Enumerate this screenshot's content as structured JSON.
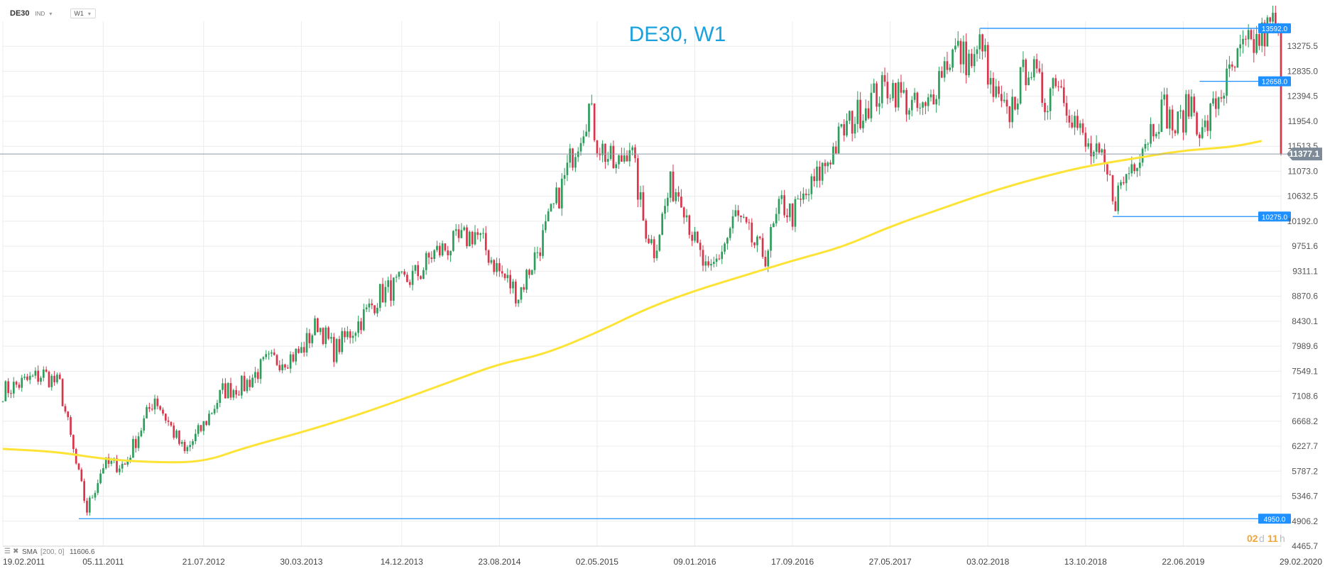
{
  "toolbar": {
    "symbol": "DE30",
    "symbol_type": "IND",
    "timeframe": "W1",
    "chevron_icon": "chevron-down-icon"
  },
  "chart_data": {
    "type": "candlestick",
    "title": "DE30, W1",
    "y_ticks": [
      "13275.5",
      "12835.0",
      "12394.5",
      "11954.0",
      "11513.5",
      "11073.0",
      "10632.5",
      "10192.0",
      "9751.6",
      "9311.1",
      "8870.6",
      "8430.1",
      "7989.6",
      "7549.1",
      "7108.6",
      "6668.2",
      "6227.7",
      "5787.2",
      "5346.7",
      "4906.2",
      "4465.7"
    ],
    "ylim": [
      4465.7,
      13716
    ],
    "x_ticks": [
      "19.02.2011",
      "05.11.2011",
      "21.07.2012",
      "30.03.2013",
      "14.12.2013",
      "23.08.2014",
      "02.05.2015",
      "09.01.2016",
      "17.09.2016",
      "27.05.2017",
      "03.02.2018",
      "13.10.2018",
      "22.06.2019",
      "29.02.2020"
    ],
    "current_price": "11377.1",
    "levels": [
      {
        "label": "13592.0",
        "value": 13592.0,
        "start": "13.01.2018"
      },
      {
        "label": "12658.0",
        "value": 12658.0,
        "start": "03.08.2019"
      },
      {
        "label": "10275.0",
        "value": 10275.0,
        "start": "22.12.2018"
      },
      {
        "label": "4950.0",
        "value": 4950.0,
        "start": "03.09.2011"
      }
    ],
    "indicator": {
      "label": "SMA",
      "params": "[200, 0]",
      "value": "11606.6",
      "color": "#fce335"
    },
    "countdown": {
      "days": "02",
      "d": "d",
      "hours": "11",
      "h": "h"
    },
    "sma_path": [
      [
        "19.02.2011",
        6180
      ],
      [
        "09.07.2011",
        6130
      ],
      [
        "05.11.2011",
        6000
      ],
      [
        "17.03.2012",
        5940
      ],
      [
        "21.07.2012",
        5950
      ],
      [
        "03.11.2012",
        6200
      ],
      [
        "30.03.2013",
        6470
      ],
      [
        "10.08.2013",
        6750
      ],
      [
        "14.12.2013",
        7050
      ],
      [
        "03.05.2014",
        7400
      ],
      [
        "23.08.2014",
        7680
      ],
      [
        "13.12.2014",
        7840
      ],
      [
        "02.05.2015",
        8230
      ],
      [
        "05.09.2015",
        8650
      ],
      [
        "09.01.2016",
        8970
      ],
      [
        "14.05.2016",
        9230
      ],
      [
        "17.09.2016",
        9500
      ],
      [
        "21.01.2017",
        9730
      ],
      [
        "27.05.2017",
        10100
      ],
      [
        "30.09.2017",
        10400
      ],
      [
        "03.02.2018",
        10700
      ],
      [
        "09.06.2018",
        10950
      ],
      [
        "13.10.2018",
        11160
      ],
      [
        "16.02.2019",
        11300
      ],
      [
        "22.06.2019",
        11440
      ],
      [
        "26.10.2019",
        11500
      ],
      [
        "10.01.2020",
        11606.6
      ]
    ],
    "price_anchors": [
      [
        "19.02.2011",
        7200
      ],
      [
        "04.06.2011",
        7500
      ],
      [
        "16.07.2011",
        7300
      ],
      [
        "27.08.2011",
        5900
      ],
      [
        "24.09.2011",
        5100
      ],
      [
        "05.11.2011",
        5900
      ],
      [
        "31.12.2011",
        5900
      ],
      [
        "17.03.2012",
        7100
      ],
      [
        "02.06.2012",
        6100
      ],
      [
        "21.07.2012",
        6600
      ],
      [
        "08.09.2012",
        7200
      ],
      [
        "03.11.2012",
        7300
      ],
      [
        "29.12.2012",
        7700
      ],
      [
        "02.03.2013",
        7800
      ],
      [
        "30.03.2013",
        7900
      ],
      [
        "11.05.2013",
        8400
      ],
      [
        "22.06.2013",
        7900
      ],
      [
        "24.08.2013",
        8400
      ],
      [
        "19.10.2013",
        8900
      ],
      [
        "14.12.2013",
        9100
      ],
      [
        "01.02.2014",
        9300
      ],
      [
        "01.03.2014",
        9600
      ],
      [
        "31.05.2014",
        9900
      ],
      [
        "21.06.2014",
        10000
      ],
      [
        "23.08.2014",
        9300
      ],
      [
        "11.10.2014",
        8900
      ],
      [
        "13.12.2014",
        9900
      ],
      [
        "31.01.2015",
        10800
      ],
      [
        "28.02.2015",
        11400
      ],
      [
        "11.04.2015",
        12200
      ],
      [
        "02.05.2015",
        11600
      ],
      [
        "20.06.2015",
        11100
      ],
      [
        "25.07.2015",
        11600
      ],
      [
        "29.08.2015",
        10200
      ],
      [
        "26.09.2015",
        9700
      ],
      [
        "07.11.2015",
        10800
      ],
      [
        "05.12.2015",
        10700
      ],
      [
        "09.01.2016",
        9800
      ],
      [
        "13.02.2016",
        9200
      ],
      [
        "02.04.2016",
        9900
      ],
      [
        "23.04.2016",
        10300
      ],
      [
        "18.06.2016",
        9700
      ],
      [
        "09.07.2016",
        9600
      ],
      [
        "20.08.2016",
        10500
      ],
      [
        "17.09.2016",
        10300
      ],
      [
        "29.10.2016",
        10700
      ],
      [
        "10.12.2016",
        11200
      ],
      [
        "28.01.2017",
        11800
      ],
      [
        "01.04.2017",
        12300
      ],
      [
        "27.05.2017",
        12600
      ],
      [
        "22.07.2017",
        12200
      ],
      [
        "26.08.2017",
        12100
      ],
      [
        "07.10.2017",
        12900
      ],
      [
        "11.11.2017",
        13200
      ],
      [
        "30.12.2017",
        12950
      ],
      [
        "20.01.2018",
        13450
      ],
      [
        "03.02.2018",
        12600
      ],
      [
        "24.03.2018",
        12000
      ],
      [
        "19.05.2018",
        13000
      ],
      [
        "30.06.2018",
        12300
      ],
      [
        "28.07.2018",
        12800
      ],
      [
        "13.10.2018",
        11500
      ],
      [
        "24.11.2018",
        11200
      ],
      [
        "29.12.2018",
        10600
      ],
      [
        "09.02.2019",
        11200
      ],
      [
        "13.04.2019",
        12000
      ],
      [
        "04.05.2019",
        12200
      ],
      [
        "01.06.2019",
        11800
      ],
      [
        "13.07.2019",
        12300
      ],
      [
        "10.08.2019",
        11700
      ],
      [
        "21.09.2019",
        12400
      ],
      [
        "26.10.2019",
        12800
      ],
      [
        "23.11.2019",
        13200
      ],
      [
        "21.12.2019",
        13300
      ],
      [
        "18.01.2020",
        13500
      ],
      [
        "15.02.2020",
        13700
      ],
      [
        "22.02.2020",
        13400
      ],
      [
        "29.02.2020",
        11377.1
      ]
    ]
  }
}
